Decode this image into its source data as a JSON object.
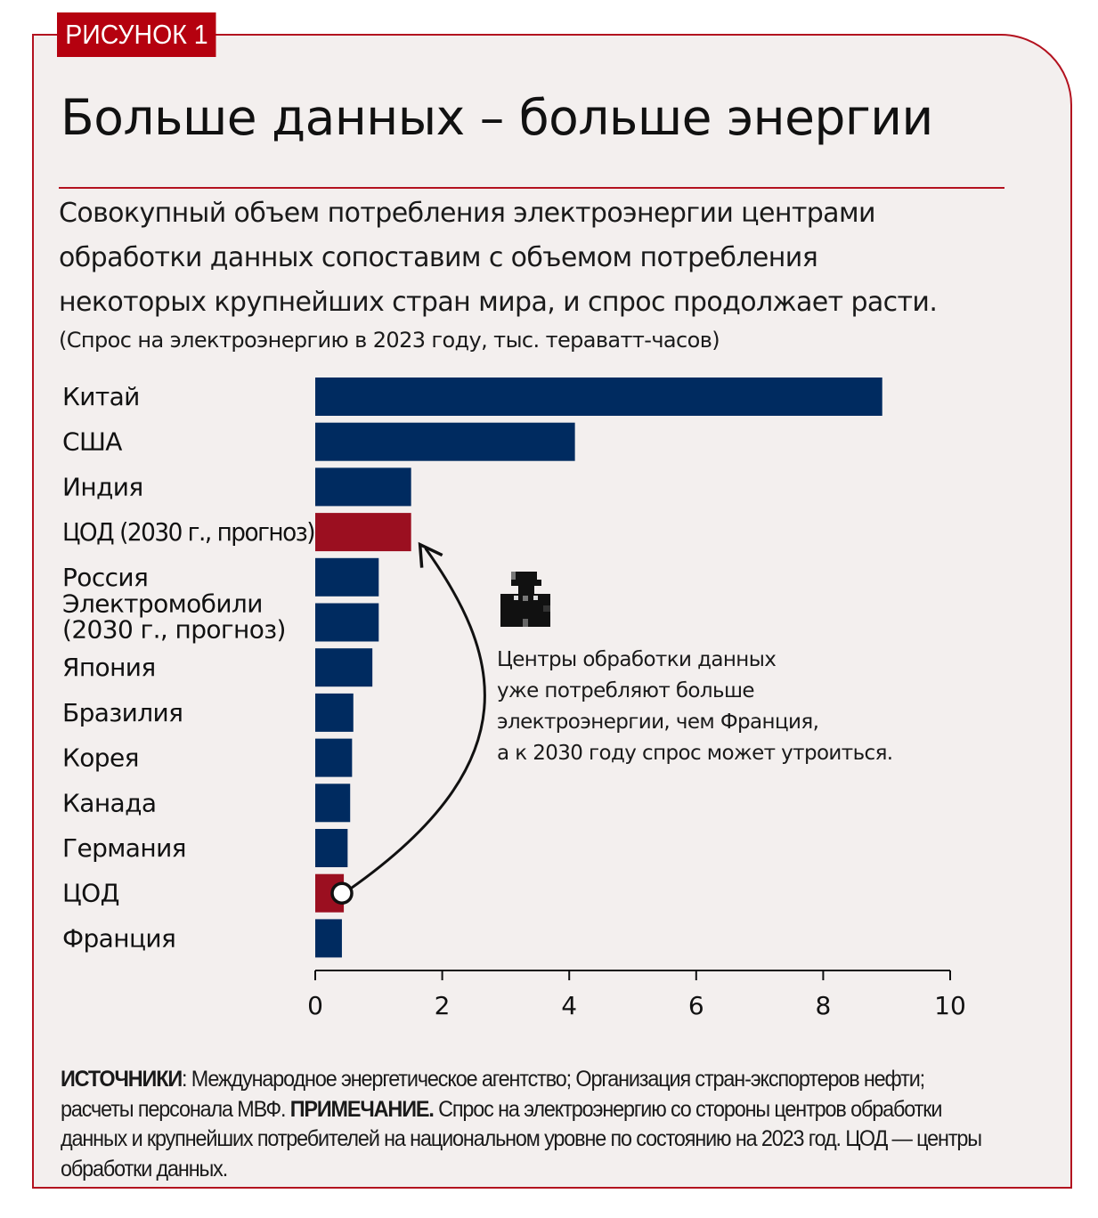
{
  "figure_tag": "РИСУНОК 1",
  "title": "Больше данных – больше энергии",
  "subtitle_lines": [
    "Совокупный объем потребления электроэнергии центрами",
    "обработки данных сопоставим с объемом потребления",
    "некоторых крупнейших стран мира, и спрос продолжает расти."
  ],
  "units_note": "(Спрос на электроэнергию в 2023 году, тыс. тераватт-часов)",
  "annotation": {
    "icon": "person-pixel-icon",
    "lines": [
      "Центры обработки данных",
      "уже потребляют больше",
      "электроэнергии, чем Франция,",
      "а к 2030 году спрос может утроиться."
    ]
  },
  "footer": {
    "sources_label": "ИСТОЧНИКИ",
    "sources_text": ": Международное энергетическое агентство; Организация стран-экспортеров нефти; расчеты персонала МВФ. ",
    "note_label": "ПРИМЕЧАНИЕ.",
    "note_text": " Спрос на электроэнергию со стороны центров обработки данных и крупнейших потребителей на национальном уровне по состоянию на 2023 год. ЦОД — центры обработки данных."
  },
  "colors": {
    "navy": "#002b60",
    "red": "#9b0f20",
    "accent": "#b5010f",
    "background": "#f3efee"
  },
  "chart_data": {
    "type": "bar",
    "orientation": "horizontal",
    "title": "Больше данных – больше энергии",
    "xlabel": "",
    "ylabel": "",
    "xlim": [
      0,
      10
    ],
    "xticks": [
      0,
      2,
      4,
      6,
      8,
      10
    ],
    "grid": false,
    "categories": [
      [
        "Китай"
      ],
      [
        "США"
      ],
      [
        "Индия"
      ],
      [
        "ЦОД (2030 г., прогноз)"
      ],
      [
        "Россия"
      ],
      [
        "Электромобили",
        "(2030 г., прогноз)"
      ],
      [
        "Япония"
      ],
      [
        "Бразилия"
      ],
      [
        "Корея"
      ],
      [
        "Канада"
      ],
      [
        "Германия"
      ],
      [
        "ЦОД"
      ],
      [
        "Франция"
      ]
    ],
    "values": [
      8.93,
      4.09,
      1.51,
      1.51,
      1.0,
      1.0,
      0.9,
      0.6,
      0.58,
      0.55,
      0.51,
      0.45,
      0.42
    ],
    "highlight": [
      false,
      false,
      false,
      true,
      false,
      false,
      false,
      false,
      false,
      false,
      false,
      true,
      false
    ],
    "arrow": {
      "from_category_index": 11,
      "to_category_index": 3
    }
  }
}
